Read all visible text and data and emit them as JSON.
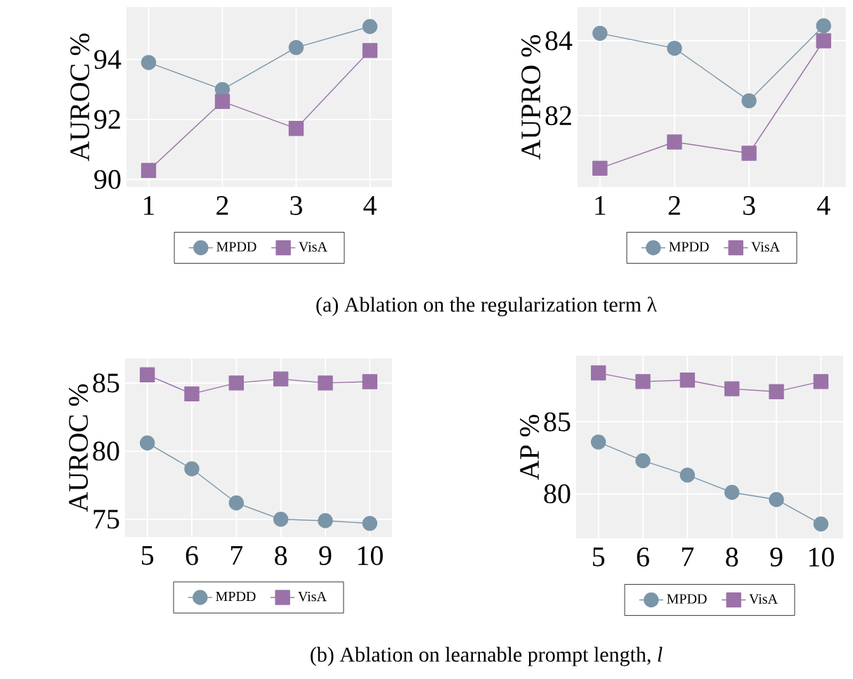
{
  "chart_data": [
    {
      "type": "line",
      "ylabel": "AUROC %",
      "x": [
        1,
        2,
        3,
        4
      ],
      "xlim": [
        0.7,
        4.3
      ],
      "xticks": [
        1,
        2,
        3,
        4
      ],
      "ylim": [
        89.75,
        95.75
      ],
      "yticks": [
        90,
        92,
        94
      ],
      "grid": true,
      "legend": "bottom",
      "annotations": [
        "(a) Ablation on the regularization term λ"
      ],
      "series": [
        {
          "name": "MPDD",
          "color": "#7a95a8",
          "marker": "circle",
          "values": [
            93.9,
            93.0,
            94.4,
            95.1
          ]
        },
        {
          "name": "VisA",
          "color": "#9a72a8",
          "marker": "square",
          "values": [
            90.3,
            92.6,
            91.7,
            94.3
          ]
        }
      ]
    },
    {
      "type": "line",
      "ylabel": "AUPRO %",
      "x": [
        1,
        2,
        3,
        4
      ],
      "xlim": [
        0.7,
        4.3
      ],
      "xticks": [
        1,
        2,
        3,
        4
      ],
      "ylim": [
        80.1,
        84.9
      ],
      "yticks": [
        82,
        84
      ],
      "grid": true,
      "legend": "bottom",
      "series": [
        {
          "name": "MPDD",
          "color": "#7a95a8",
          "marker": "circle",
          "values": [
            84.2,
            83.8,
            82.4,
            84.4
          ]
        },
        {
          "name": "VisA",
          "color": "#9a72a8",
          "marker": "square",
          "values": [
            80.6,
            81.3,
            81.0,
            84.0
          ]
        }
      ]
    },
    {
      "type": "line",
      "ylabel": "AUROC %",
      "x": [
        5,
        6,
        7,
        8,
        9,
        10
      ],
      "xlim": [
        4.5,
        10.5
      ],
      "xticks": [
        5,
        6,
        7,
        8,
        9,
        10
      ],
      "ylim": [
        73.7,
        86.8
      ],
      "yticks": [
        75,
        80,
        85
      ],
      "grid": true,
      "legend": "bottom",
      "annotations": [
        "(b) Ablation on learnable prompt length, *l*"
      ],
      "series": [
        {
          "name": "MPDD",
          "color": "#7a95a8",
          "marker": "circle",
          "values": [
            80.6,
            78.7,
            76.2,
            75.0,
            74.9,
            74.7
          ]
        },
        {
          "name": "VisA",
          "color": "#9a72a8",
          "marker": "square",
          "values": [
            85.6,
            84.2,
            85.0,
            85.3,
            85.0,
            85.1
          ]
        }
      ]
    },
    {
      "type": "line",
      "ylabel": "AP %",
      "x": [
        5,
        6,
        7,
        8,
        9,
        10
      ],
      "xlim": [
        4.5,
        10.5
      ],
      "xticks": [
        5,
        6,
        7,
        8,
        9,
        10
      ],
      "ylim": [
        76.9,
        89.6
      ],
      "yticks": [
        80,
        85
      ],
      "grid": true,
      "legend": "bottom",
      "series": [
        {
          "name": "MPDD",
          "color": "#7a95a8",
          "marker": "circle",
          "values": [
            83.6,
            82.3,
            81.3,
            80.1,
            79.6,
            77.9
          ]
        },
        {
          "name": "VisA",
          "color": "#9a72a8",
          "marker": "square",
          "values": [
            88.4,
            87.8,
            87.9,
            87.3,
            87.1,
            87.8
          ]
        }
      ]
    }
  ]
}
